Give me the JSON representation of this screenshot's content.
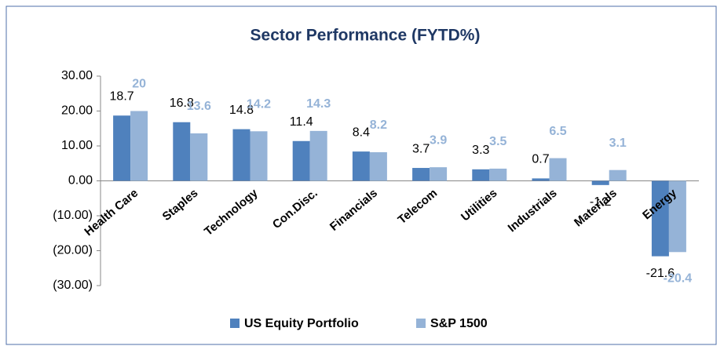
{
  "chart_data": {
    "type": "bar",
    "title": "Sector Performance (FYTD%)",
    "categories": [
      "Health Care",
      "Staples",
      "Technology",
      "Con.Disc.",
      "Financials",
      "Telecom",
      "Utilities",
      "Industrials",
      "Materials",
      "Energy"
    ],
    "series": [
      {
        "name": "US Equity Portfolio",
        "color": "#4f81bd",
        "values": [
          18.7,
          16.8,
          14.8,
          11.4,
          8.4,
          3.7,
          3.3,
          0.7,
          -1.2,
          -21.6
        ]
      },
      {
        "name": "S&P 1500",
        "color": "#95b3d7",
        "values": [
          20.0,
          13.6,
          14.2,
          14.3,
          8.2,
          3.9,
          3.5,
          6.5,
          3.1,
          -20.4
        ]
      }
    ],
    "ylim": [
      -30,
      30
    ],
    "yticks": [
      {
        "value": -30,
        "label": "(30.00)"
      },
      {
        "value": -20,
        "label": "(20.00)"
      },
      {
        "value": -10,
        "label": "(10.00)"
      },
      {
        "value": 0,
        "label": "0.00"
      },
      {
        "value": 10,
        "label": "10.00"
      },
      {
        "value": 20,
        "label": "20.00"
      },
      {
        "value": 30,
        "label": "30.00"
      }
    ],
    "grid": false,
    "legend": "bottom"
  }
}
